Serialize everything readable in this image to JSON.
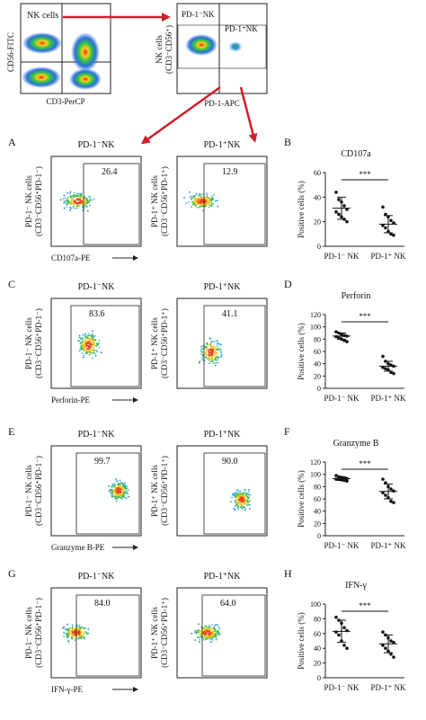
{
  "top": {
    "gate1": {
      "gate_label": "NK cells",
      "ylabel": "CD56-FITC",
      "xlabel": "CD3-PerCP"
    },
    "gate2": {
      "ylabel_line1": "NK cells",
      "ylabel_line2": "(CD3⁻CD56⁺)",
      "left_label": "PD-1⁻NK",
      "right_label": "PD-1⁺NK",
      "xlabel": "PD-1-APC"
    }
  },
  "panels": [
    {
      "letter": "A",
      "stat_letter": "B",
      "neg_title": "PD-1⁻NK",
      "pos_title": "PD-1⁺NK",
      "neg_ylabel1": "PD-1⁻ NK cells",
      "neg_ylabel2": "(CD3⁻CD56⁺PD-1⁻)",
      "pos_ylabel1": "PD-1⁺ NK cells",
      "pos_ylabel2": "(CD3⁻CD56⁺PD-1⁺)",
      "neg_pct": "26.4",
      "pos_pct": "12.9",
      "xlabel": "CD107a-PE"
    },
    {
      "letter": "C",
      "stat_letter": "D",
      "neg_title": "PD-1⁻NK",
      "pos_title": "PD-1⁺NK",
      "neg_ylabel1": "PD-1⁻ NK cells",
      "neg_ylabel2": "(CD3⁻CD56⁺PD-1⁻)",
      "pos_ylabel1": "PD-1⁺ NK cells",
      "pos_ylabel2": "(CD3⁻CD56⁺PD-1⁺)",
      "neg_pct": "83.6",
      "pos_pct": "41.1",
      "xlabel": "Perforin-PE"
    },
    {
      "letter": "E",
      "stat_letter": "F",
      "neg_title": "PD-1⁻NK",
      "pos_title": "PD-1⁺NK",
      "neg_ylabel1": "PD-1⁻ NK cells",
      "neg_ylabel2": "(CD3⁻CD56⁺PD-1⁻)",
      "pos_ylabel1": "PD-1⁺ NK cells",
      "pos_ylabel2": "(CD3⁻CD56⁺PD-1⁺)",
      "neg_pct": "99.7",
      "pos_pct": "90.0",
      "xlabel": "Granzyme B-PE"
    },
    {
      "letter": "G",
      "stat_letter": "H",
      "neg_title": "PD-1⁻NK",
      "pos_title": "PD-1⁺NK",
      "neg_ylabel1": "PD-1⁻ NK cells",
      "neg_ylabel2": "(CD3⁻CD56⁺PD-1⁻)",
      "pos_ylabel1": "PD-1⁺ NK cells",
      "pos_ylabel2": "(CD3⁻CD56⁺PD-1⁺)",
      "neg_pct": "84.0",
      "pos_pct": "64.0",
      "xlabel": "IFN-γ-PE"
    }
  ],
  "colors": {
    "arrow": "#d0202a",
    "dot": "#111111"
  },
  "chart_data": [
    {
      "type": "scatter",
      "title": "CD107a",
      "ylabel": "Positive cells (%)",
      "categories": [
        "PD-1⁻ NK",
        "PD-1⁺ NK"
      ],
      "ylim": [
        0,
        60
      ],
      "yticks": [
        0,
        20,
        40,
        60
      ],
      "significance": "***",
      "series": [
        {
          "values": [
            44,
            38,
            36,
            33,
            30,
            28,
            26,
            24,
            22,
            20
          ],
          "mean": 31,
          "sd": 9
        },
        {
          "values": [
            32,
            26,
            24,
            21,
            19,
            17,
            15,
            12,
            10,
            9
          ],
          "mean": 18,
          "sd": 7
        }
      ]
    },
    {
      "type": "scatter",
      "title": "Perforin",
      "ylabel": "Positive cells (%)",
      "categories": [
        "PD-1⁻ NK",
        "PD-1⁺ NK"
      ],
      "ylim": [
        0,
        120
      ],
      "yticks": [
        0,
        20,
        40,
        60,
        80,
        100,
        120
      ],
      "significance": "***",
      "series": [
        {
          "values": [
            92,
            90,
            88,
            86,
            85,
            84,
            82,
            80,
            78,
            76
          ],
          "mean": 85,
          "sd": 5
        },
        {
          "values": [
            52,
            44,
            40,
            38,
            36,
            34,
            32,
            30,
            26,
            24
          ],
          "mean": 36,
          "sd": 8
        }
      ]
    },
    {
      "type": "scatter",
      "title": "Granzyme B",
      "ylabel": "Positive cells (%)",
      "categories": [
        "PD-1⁻ NK",
        "PD-1⁺ NK"
      ],
      "ylim": [
        0,
        120
      ],
      "yticks": [
        0,
        20,
        40,
        60,
        80,
        100,
        120
      ],
      "significance": "***",
      "series": [
        {
          "values": [
            98,
            96,
            95,
            94,
            93,
            92,
            92,
            91,
            90,
            89
          ],
          "mean": 93,
          "sd": 3
        },
        {
          "values": [
            92,
            86,
            80,
            76,
            73,
            70,
            66,
            62,
            56,
            54
          ],
          "mean": 72,
          "sd": 12
        }
      ]
    },
    {
      "type": "scatter",
      "title": "IFN-γ",
      "ylabel": "Positive cells (%)",
      "categories": [
        "PD-1⁻ NK",
        "PD-1⁺ NK"
      ],
      "ylim": [
        0,
        100
      ],
      "yticks": [
        0,
        20,
        40,
        60,
        80,
        100
      ],
      "significance": "***",
      "series": [
        {
          "values": [
            82,
            78,
            74,
            68,
            64,
            62,
            58,
            50,
            44,
            40
          ],
          "mean": 63,
          "sd": 15
        },
        {
          "values": [
            62,
            58,
            54,
            50,
            48,
            44,
            40,
            36,
            32,
            28
          ],
          "mean": 46,
          "sd": 12
        }
      ]
    }
  ]
}
